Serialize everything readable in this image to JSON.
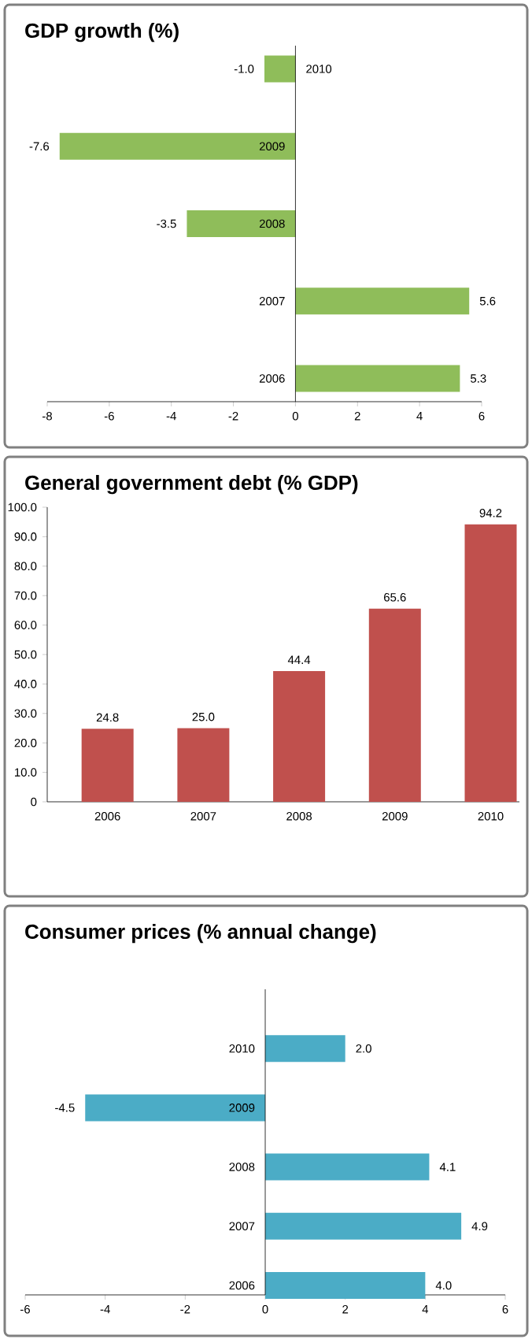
{
  "chart_data": [
    {
      "type": "bar",
      "orientation": "horizontal",
      "title": "GDP growth (%)",
      "categories": [
        "2010",
        "2009",
        "2008",
        "2007",
        "2006"
      ],
      "values": [
        -1.0,
        -7.6,
        -3.5,
        5.6,
        5.3
      ],
      "value_labels": [
        "-1.0",
        "-7.6",
        "-3.5",
        "5.6",
        "5.3"
      ],
      "color": "#8fbd5a",
      "xlim": [
        -8,
        6
      ],
      "xticks": [
        -8,
        -6,
        -4,
        -2,
        0,
        2,
        4,
        6
      ]
    },
    {
      "type": "bar",
      "title": "General government debt (% GDP)",
      "categories": [
        "2006",
        "2007",
        "2008",
        "2009",
        "2010"
      ],
      "values": [
        24.8,
        25.0,
        44.4,
        65.6,
        94.2
      ],
      "value_labels": [
        "24.8",
        "25.0",
        "44.4",
        "65.6",
        "94.2"
      ],
      "color": "#c0504d",
      "ylim": [
        0,
        100
      ],
      "yticks": [
        {
          "value": 0,
          "label": "0"
        },
        {
          "value": 10,
          "label": "10.0"
        },
        {
          "value": 20,
          "label": "20.0"
        },
        {
          "value": 30,
          "label": "30.0"
        },
        {
          "value": 40,
          "label": "40.0"
        },
        {
          "value": 50,
          "label": "50.0"
        },
        {
          "value": 60,
          "label": "60.0"
        },
        {
          "value": 70,
          "label": "70.0"
        },
        {
          "value": 80,
          "label": "80.0"
        },
        {
          "value": 90,
          "label": "90.0"
        },
        {
          "value": 100,
          "label": "100.0"
        }
      ]
    },
    {
      "type": "bar",
      "orientation": "horizontal",
      "title": "Consumer prices (% annual change)",
      "categories": [
        "2010",
        "2009",
        "2008",
        "2007",
        "2006"
      ],
      "values": [
        2.0,
        -4.5,
        4.1,
        4.9,
        4.0
      ],
      "value_labels": [
        "2.0",
        "-4.5",
        "4.1",
        "4.9",
        "4.0"
      ],
      "color": "#4bacc6",
      "xlim": [
        -6,
        6
      ],
      "xticks": [
        -6,
        -4,
        -2,
        0,
        2,
        4,
        6
      ]
    }
  ]
}
